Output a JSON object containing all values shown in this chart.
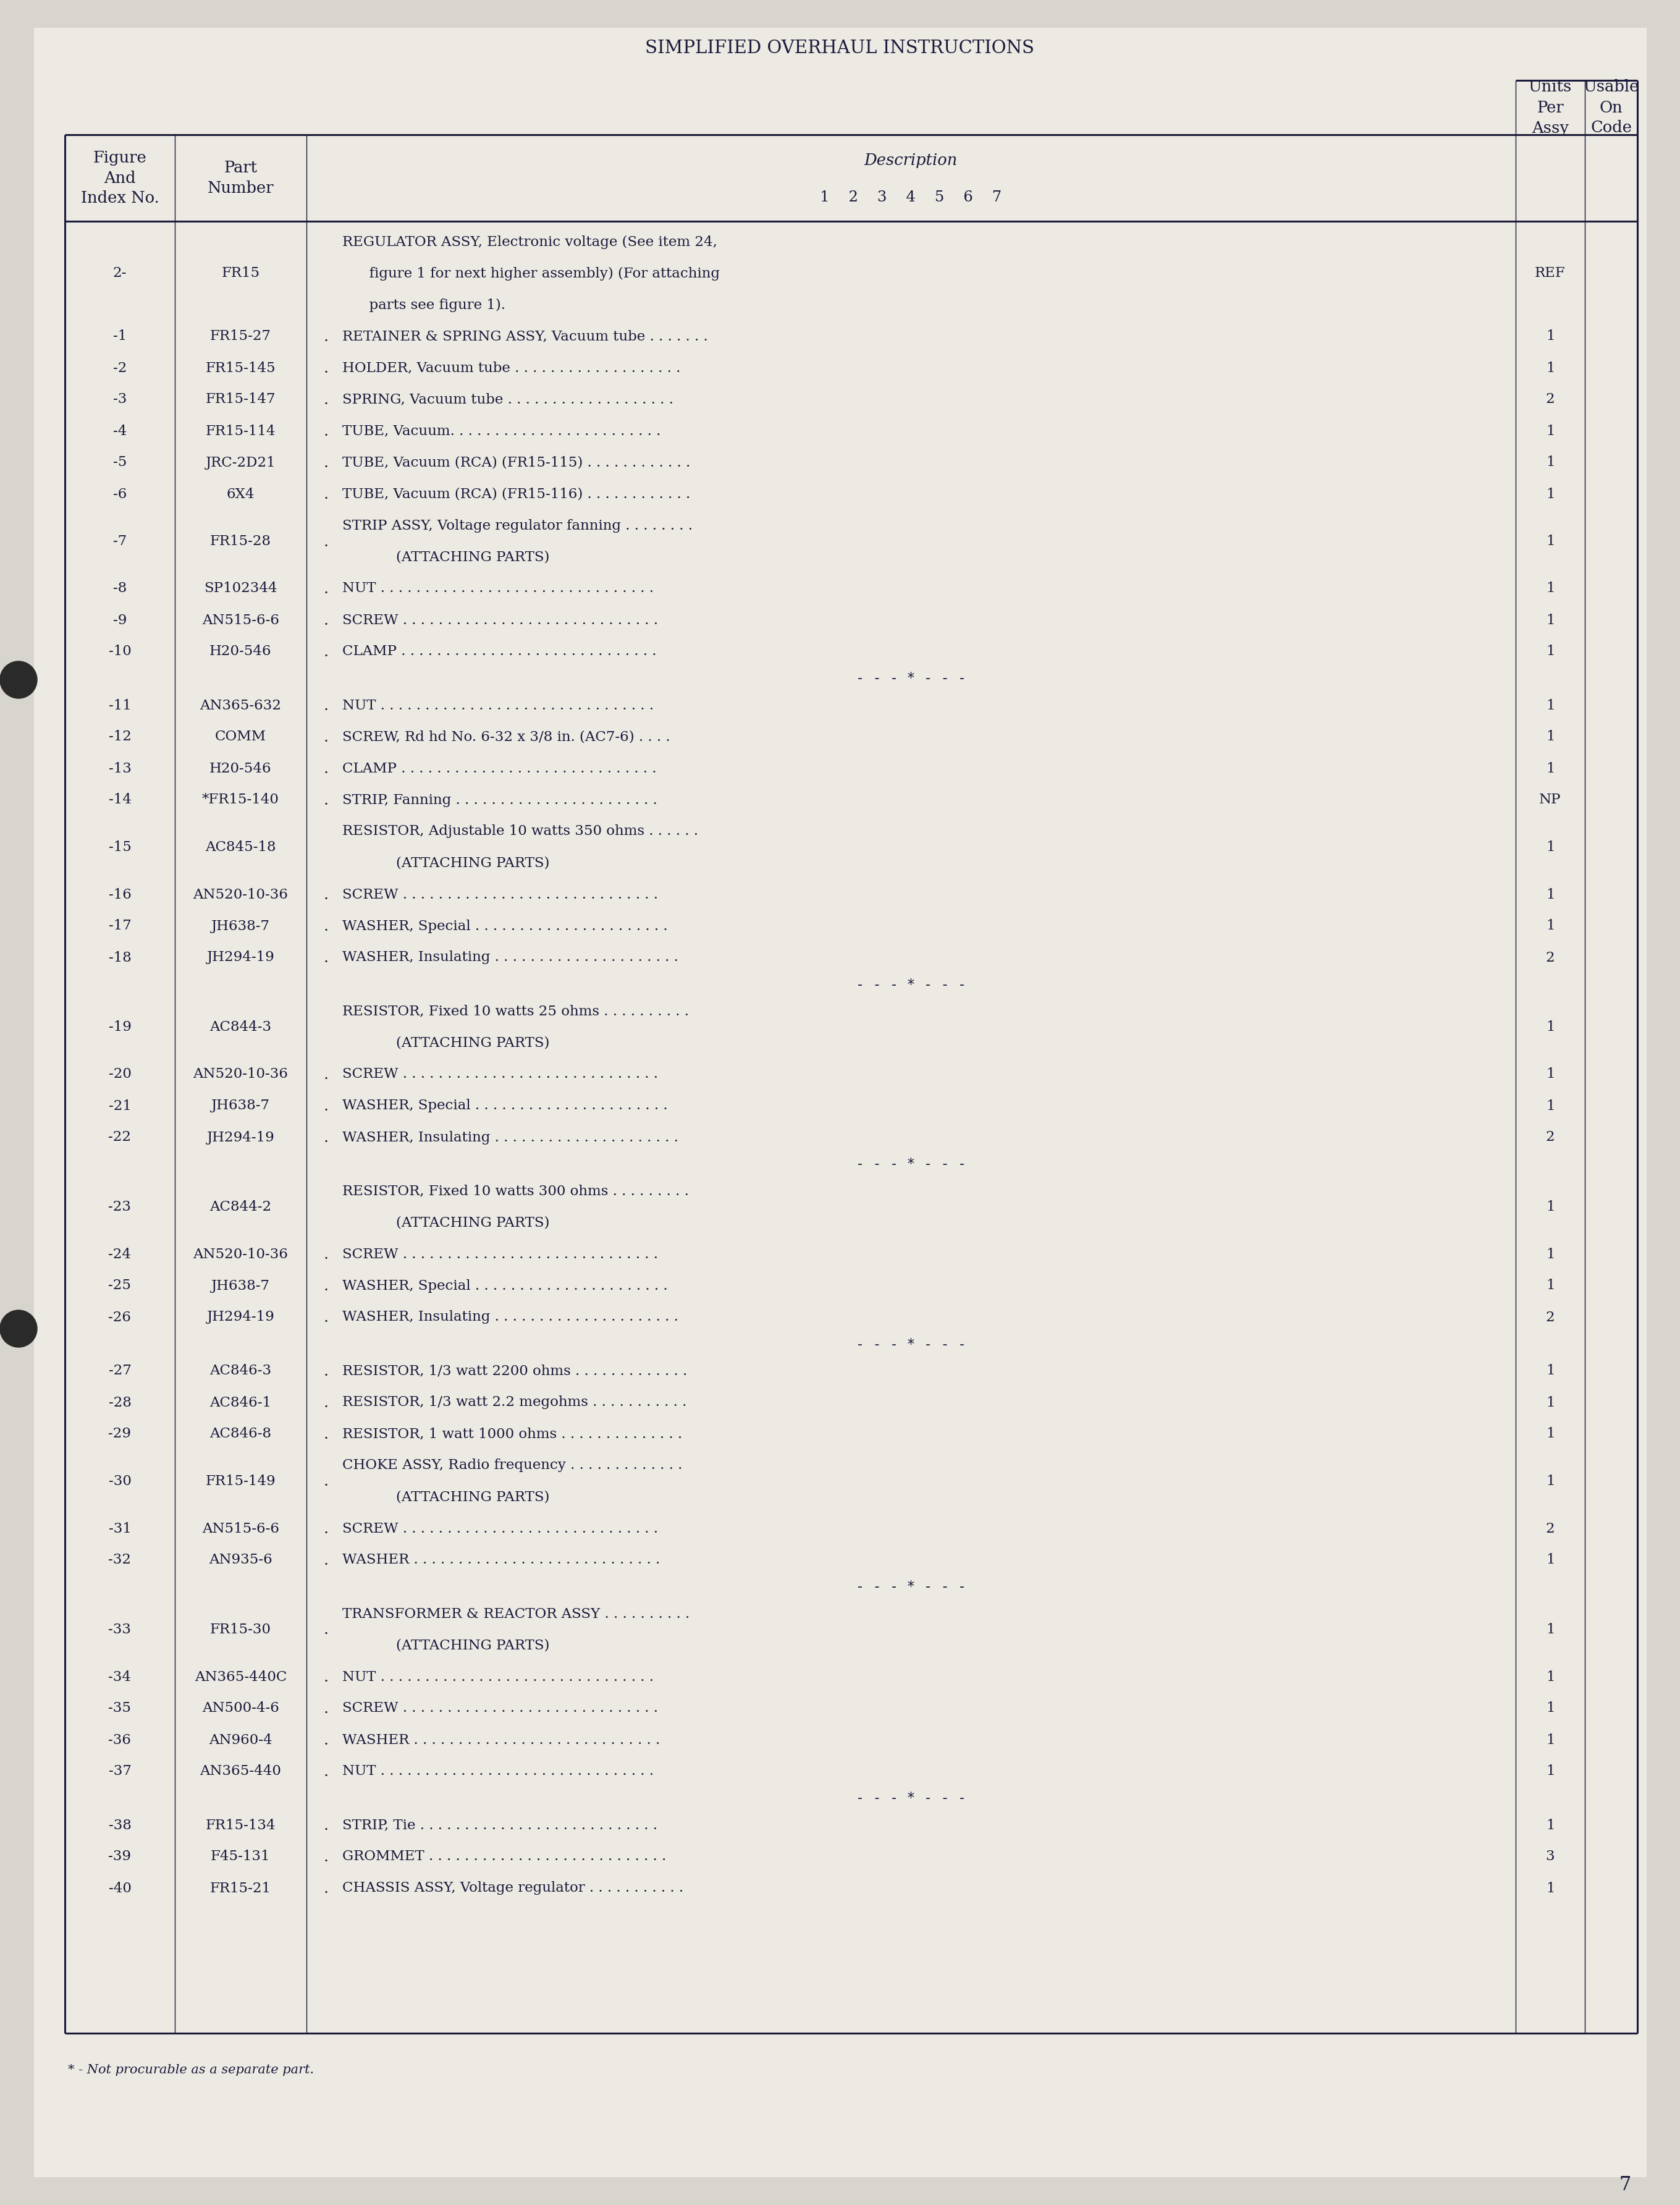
{
  "page_bg": "#d8d5ce",
  "paper_bg": "#edeae3",
  "text_color": "#1a1a3a",
  "title": "SIMPLIFIED OVERHAUL INSTRUCTIONS",
  "page_number": "7",
  "footer_note": "* - Not procurable as a separate part.",
  "rows": [
    {
      "fig": "2-",
      "part": "FR15",
      "dot": false,
      "desc": [
        "REGULATOR ASSY, Electronic voltage (See item 24,",
        "      figure 1 for next higher assembly) (For attaching",
        "      parts see figure 1)."
      ],
      "units": "REF",
      "sep_after": false
    },
    {
      "fig": "-1",
      "part": "FR15-27",
      "dot": true,
      "desc": [
        "RETAINER & SPRING ASSY, Vacuum tube . . . . . . ."
      ],
      "units": "1",
      "sep_after": false
    },
    {
      "fig": "-2",
      "part": "FR15-145",
      "dot": true,
      "desc": [
        "HOLDER, Vacuum tube . . . . . . . . . . . . . . . . . . ."
      ],
      "units": "1",
      "sep_after": false
    },
    {
      "fig": "-3",
      "part": "FR15-147",
      "dot": true,
      "desc": [
        "SPRING, Vacuum tube . . . . . . . . . . . . . . . . . . ."
      ],
      "units": "2",
      "sep_after": false
    },
    {
      "fig": "-4",
      "part": "FR15-114",
      "dot": true,
      "desc": [
        "TUBE, Vacuum. . . . . . . . . . . . . . . . . . . . . . . ."
      ],
      "units": "1",
      "sep_after": false
    },
    {
      "fig": "-5",
      "part": "JRC-2D21",
      "dot": true,
      "desc": [
        "TUBE, Vacuum (RCA) (FR15-115) . . . . . . . . . . . ."
      ],
      "units": "1",
      "sep_after": false
    },
    {
      "fig": "-6",
      "part": "6X4",
      "dot": true,
      "desc": [
        "TUBE, Vacuum (RCA) (FR15-116) . . . . . . . . . . . ."
      ],
      "units": "1",
      "sep_after": false
    },
    {
      "fig": "-7",
      "part": "FR15-28",
      "dot": true,
      "desc": [
        "STRIP ASSY, Voltage regulator fanning . . . . . . . .",
        "            (ATTACHING PARTS)"
      ],
      "units": "1",
      "sep_after": false
    },
    {
      "fig": "-8",
      "part": "SP102344",
      "dot": true,
      "desc": [
        "NUT . . . . . . . . . . . . . . . . . . . . . . . . . . . . . . ."
      ],
      "units": "1",
      "sep_after": false
    },
    {
      "fig": "-9",
      "part": "AN515-6-6",
      "dot": true,
      "desc": [
        "SCREW . . . . . . . . . . . . . . . . . . . . . . . . . . . . ."
      ],
      "units": "1",
      "sep_after": false
    },
    {
      "fig": "-10",
      "part": "H20-546",
      "dot": true,
      "desc": [
        "CLAMP . . . . . . . . . . . . . . . . . . . . . . . . . . . . ."
      ],
      "units": "1",
      "sep_after": true
    },
    {
      "fig": "-11",
      "part": "AN365-632",
      "dot": true,
      "desc": [
        "NUT . . . . . . . . . . . . . . . . . . . . . . . . . . . . . . ."
      ],
      "units": "1",
      "sep_after": false
    },
    {
      "fig": "-12",
      "part": "COMM",
      "dot": true,
      "desc": [
        "SCREW, Rd hd No. 6-32 x 3/8 in. (AC7-6) . . . ."
      ],
      "units": "1",
      "sep_after": false
    },
    {
      "fig": "-13",
      "part": "H20-546",
      "dot": true,
      "desc": [
        "CLAMP . . . . . . . . . . . . . . . . . . . . . . . . . . . . ."
      ],
      "units": "1",
      "sep_after": false
    },
    {
      "fig": "-14",
      "part": "*FR15-140",
      "dot": true,
      "desc": [
        "STRIP, Fanning . . . . . . . . . . . . . . . . . . . . . . ."
      ],
      "units": "NP",
      "sep_after": false
    },
    {
      "fig": "-15",
      "part": "AC845-18",
      "dot": false,
      "desc": [
        "RESISTOR, Adjustable 10 watts 350 ohms . . . . . .",
        "            (ATTACHING PARTS)"
      ],
      "units": "1",
      "sep_after": false
    },
    {
      "fig": "-16",
      "part": "AN520-10-36",
      "dot": true,
      "desc": [
        "SCREW . . . . . . . . . . . . . . . . . . . . . . . . . . . . ."
      ],
      "units": "1",
      "sep_after": false
    },
    {
      "fig": "-17",
      "part": "JH638-7",
      "dot": true,
      "desc": [
        "WASHER, Special . . . . . . . . . . . . . . . . . . . . . ."
      ],
      "units": "1",
      "sep_after": false
    },
    {
      "fig": "-18",
      "part": "JH294-19",
      "dot": true,
      "desc": [
        "WASHER, Insulating . . . . . . . . . . . . . . . . . . . . ."
      ],
      "units": "2",
      "sep_after": true
    },
    {
      "fig": "-19",
      "part": "AC844-3",
      "dot": false,
      "desc": [
        "RESISTOR, Fixed 10 watts 25 ohms . . . . . . . . . .",
        "            (ATTACHING PARTS)"
      ],
      "units": "1",
      "sep_after": false
    },
    {
      "fig": "-20",
      "part": "AN520-10-36",
      "dot": true,
      "desc": [
        "SCREW . . . . . . . . . . . . . . . . . . . . . . . . . . . . ."
      ],
      "units": "1",
      "sep_after": false
    },
    {
      "fig": "-21",
      "part": "JH638-7",
      "dot": true,
      "desc": [
        "WASHER, Special . . . . . . . . . . . . . . . . . . . . . ."
      ],
      "units": "1",
      "sep_after": false
    },
    {
      "fig": "-22",
      "part": "JH294-19",
      "dot": true,
      "desc": [
        "WASHER, Insulating . . . . . . . . . . . . . . . . . . . . ."
      ],
      "units": "2",
      "sep_after": true
    },
    {
      "fig": "-23",
      "part": "AC844-2",
      "dot": false,
      "desc": [
        "RESISTOR, Fixed 10 watts 300 ohms . . . . . . . . .",
        "            (ATTACHING PARTS)"
      ],
      "units": "1",
      "sep_after": false
    },
    {
      "fig": "-24",
      "part": "AN520-10-36",
      "dot": true,
      "desc": [
        "SCREW . . . . . . . . . . . . . . . . . . . . . . . . . . . . ."
      ],
      "units": "1",
      "sep_after": false
    },
    {
      "fig": "-25",
      "part": "JH638-7",
      "dot": true,
      "desc": [
        "WASHER, Special . . . . . . . . . . . . . . . . . . . . . ."
      ],
      "units": "1",
      "sep_after": false
    },
    {
      "fig": "-26",
      "part": "JH294-19",
      "dot": true,
      "desc": [
        "WASHER, Insulating . . . . . . . . . . . . . . . . . . . . ."
      ],
      "units": "2",
      "sep_after": true
    },
    {
      "fig": "-27",
      "part": "AC846-3",
      "dot": true,
      "desc": [
        "RESISTOR, 1/3 watt 2200 ohms . . . . . . . . . . . . ."
      ],
      "units": "1",
      "sep_after": false
    },
    {
      "fig": "-28",
      "part": "AC846-1",
      "dot": true,
      "desc": [
        "RESISTOR, 1/3 watt 2.2 megohms . . . . . . . . . . ."
      ],
      "units": "1",
      "sep_after": false
    },
    {
      "fig": "-29",
      "part": "AC846-8",
      "dot": true,
      "desc": [
        "RESISTOR, 1 watt 1000 ohms . . . . . . . . . . . . . ."
      ],
      "units": "1",
      "sep_after": false
    },
    {
      "fig": "-30",
      "part": "FR15-149",
      "dot": true,
      "desc": [
        "CHOKE ASSY, Radio frequency . . . . . . . . . . . . .",
        "            (ATTACHING PARTS)"
      ],
      "units": "1",
      "sep_after": false
    },
    {
      "fig": "-31",
      "part": "AN515-6-6",
      "dot": true,
      "desc": [
        "SCREW . . . . . . . . . . . . . . . . . . . . . . . . . . . . ."
      ],
      "units": "2",
      "sep_after": false
    },
    {
      "fig": "-32",
      "part": "AN935-6",
      "dot": true,
      "desc": [
        "WASHER . . . . . . . . . . . . . . . . . . . . . . . . . . . ."
      ],
      "units": "1",
      "sep_after": true
    },
    {
      "fig": "-33",
      "part": "FR15-30",
      "dot": true,
      "desc": [
        "TRANSFORMER & REACTOR ASSY . . . . . . . . . .",
        "            (ATTACHING PARTS)"
      ],
      "units": "1",
      "sep_after": false
    },
    {
      "fig": "-34",
      "part": "AN365-440C",
      "dot": true,
      "desc": [
        "NUT . . . . . . . . . . . . . . . . . . . . . . . . . . . . . . ."
      ],
      "units": "1",
      "sep_after": false
    },
    {
      "fig": "-35",
      "part": "AN500-4-6",
      "dot": true,
      "desc": [
        "SCREW . . . . . . . . . . . . . . . . . . . . . . . . . . . . ."
      ],
      "units": "1",
      "sep_after": false
    },
    {
      "fig": "-36",
      "part": "AN960-4",
      "dot": true,
      "desc": [
        "WASHER . . . . . . . . . . . . . . . . . . . . . . . . . . . ."
      ],
      "units": "1",
      "sep_after": false
    },
    {
      "fig": "-37",
      "part": "AN365-440",
      "dot": true,
      "desc": [
        "NUT . . . . . . . . . . . . . . . . . . . . . . . . . . . . . . ."
      ],
      "units": "1",
      "sep_after": true
    },
    {
      "fig": "-38",
      "part": "FR15-134",
      "dot": true,
      "desc": [
        "STRIP, Tie . . . . . . . . . . . . . . . . . . . . . . . . . . ."
      ],
      "units": "1",
      "sep_after": false
    },
    {
      "fig": "-39",
      "part": "F45-131",
      "dot": true,
      "desc": [
        "GROMMET . . . . . . . . . . . . . . . . . . . . . . . . . . ."
      ],
      "units": "3",
      "sep_after": false
    },
    {
      "fig": "-40",
      "part": "FR15-21",
      "dot": true,
      "desc": [
        "CHASSIS ASSY, Voltage regulator . . . . . . . . . . ."
      ],
      "units": "1",
      "sep_after": false
    }
  ]
}
